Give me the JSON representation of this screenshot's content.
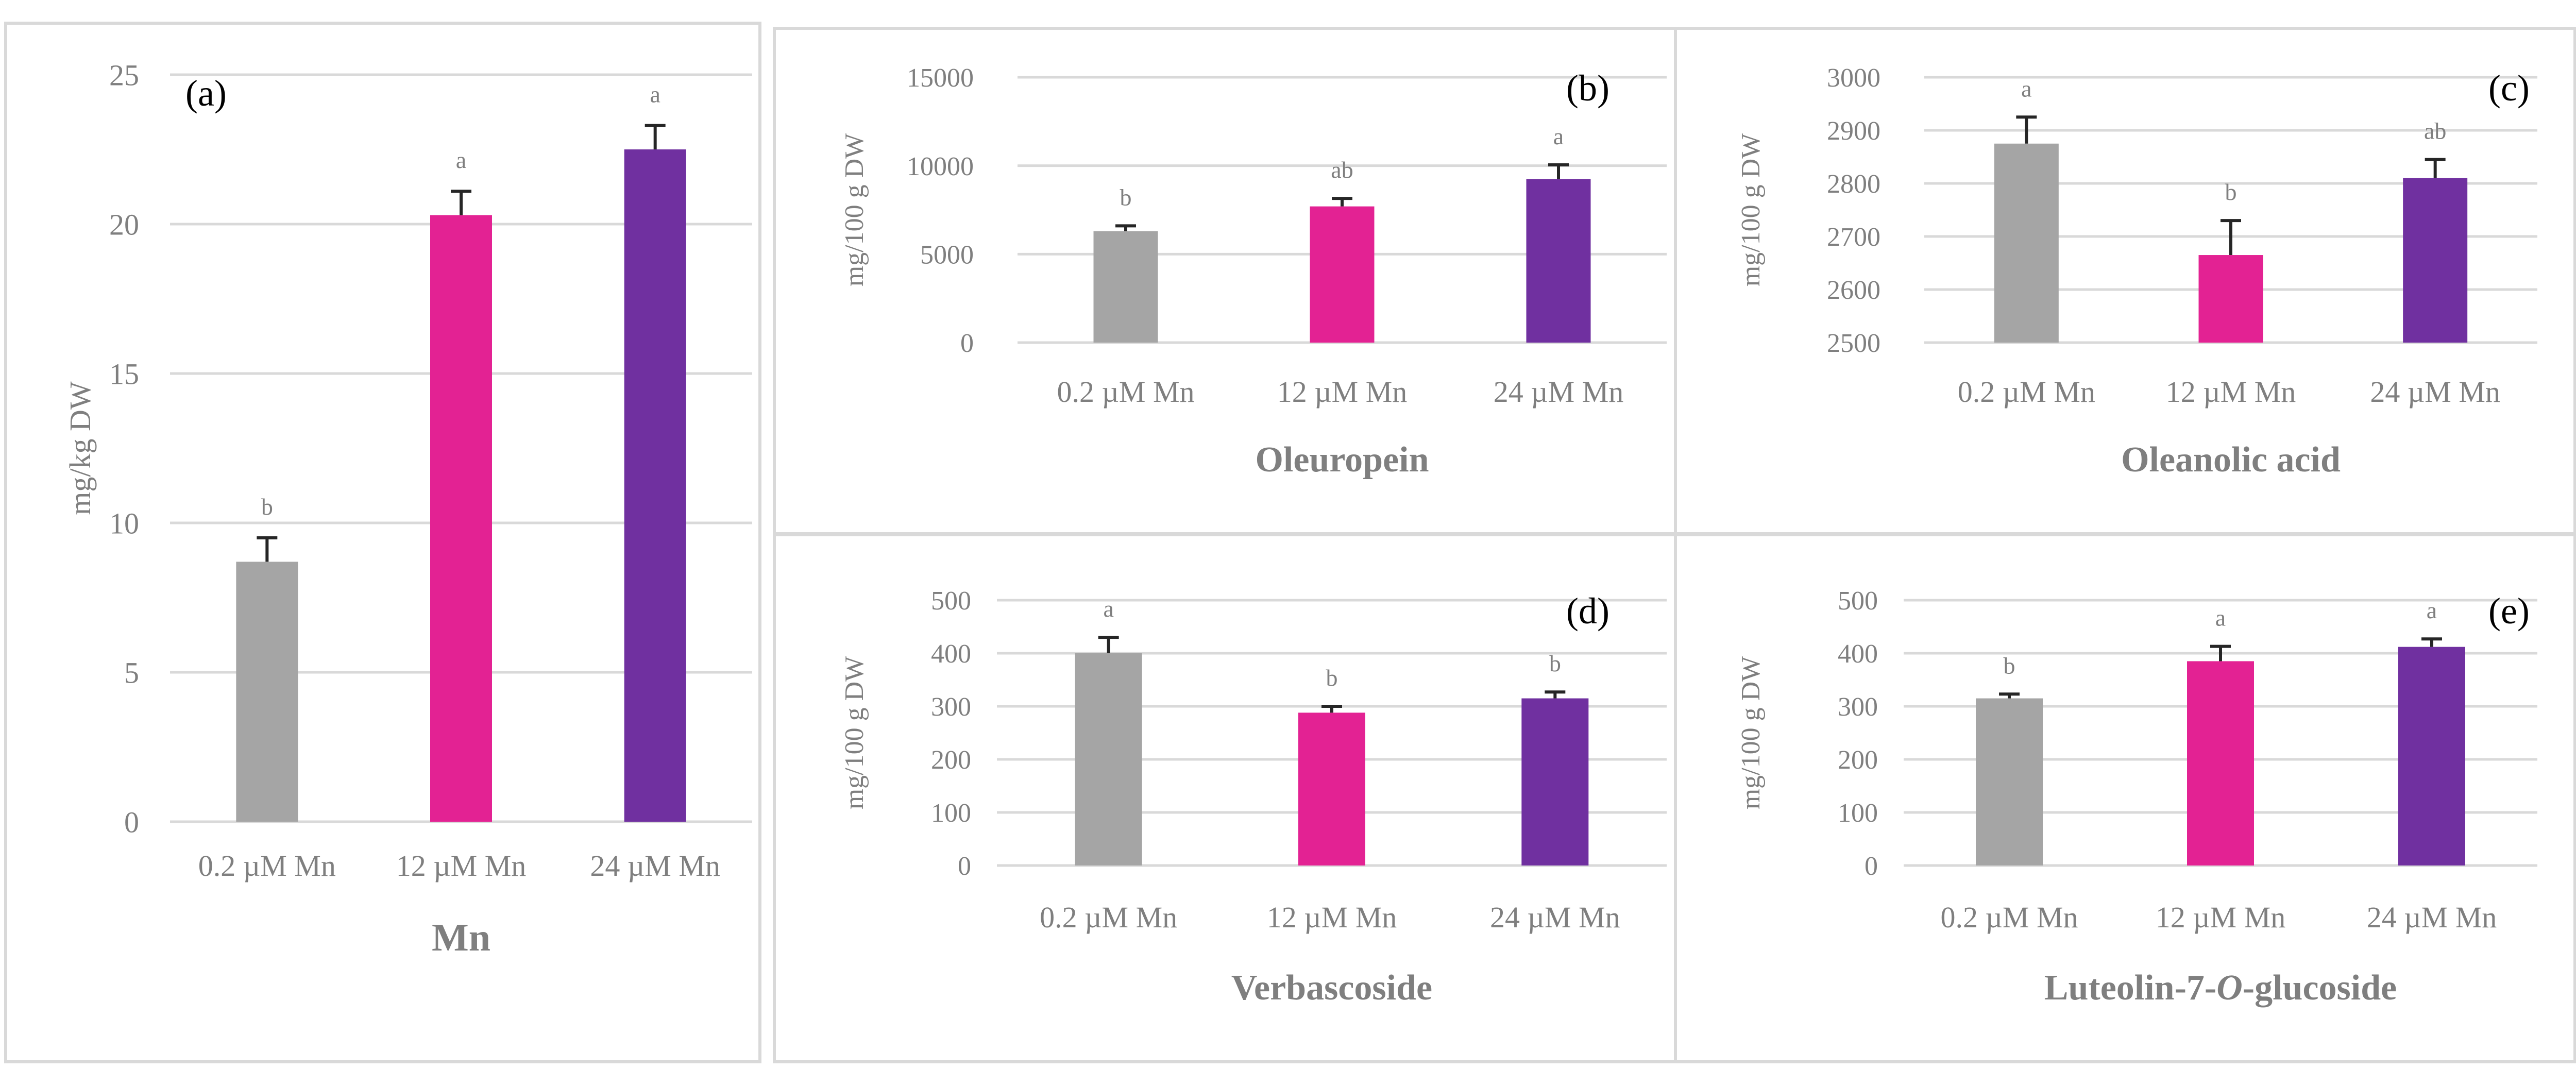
{
  "colors": {
    "gray": "#a5a5a5",
    "pink": "#e32293",
    "purple": "#7030a0",
    "grid": "#d9d9d9",
    "text": "#7f7f7f",
    "errorbar": "#262626"
  },
  "chart_data": [
    {
      "id": "a",
      "type": "bar",
      "panel_label": "(a)",
      "title": "",
      "xlabel": "Mn",
      "ylabel": "mg/kg DW",
      "categories": [
        "0.2 µM Mn",
        "12 µM Mn",
        "24 µM Mn"
      ],
      "values": [
        8.7,
        20.3,
        22.5
      ],
      "errors": [
        0.8,
        0.8,
        0.8
      ],
      "significance": [
        "b",
        "a",
        "a"
      ],
      "ylim": [
        0,
        25
      ],
      "yticks": [
        0,
        5,
        10,
        15,
        20,
        25
      ],
      "ytick_labels": [
        "0",
        "5",
        "10",
        "15",
        "20",
        "25"
      ]
    },
    {
      "id": "b",
      "type": "bar",
      "panel_label": "(b)",
      "title": "",
      "xlabel": "Oleuropein",
      "ylabel": "mg/100 g DW",
      "categories": [
        "0.2 µM Mn",
        "12 µM Mn",
        "24 µM Mn"
      ],
      "values": [
        6300,
        7700,
        9250
      ],
      "errors": [
        300,
        450,
        800
      ],
      "significance": [
        "b",
        "ab",
        "a"
      ],
      "ylim": [
        0,
        15000
      ],
      "yticks": [
        0,
        5000,
        10000,
        15000
      ],
      "ytick_labels": [
        "0",
        "5000",
        "10000",
        "15000"
      ]
    },
    {
      "id": "c",
      "type": "bar",
      "panel_label": "(c)",
      "title": "",
      "xlabel": "Oleanolic acid",
      "ylabel": "mg/100 g DW",
      "categories": [
        "0.2 µM Mn",
        "12 µM Mn",
        "24 µM Mn"
      ],
      "values": [
        2875,
        2665,
        2810
      ],
      "errors": [
        50,
        65,
        35
      ],
      "significance": [
        "a",
        "b",
        "ab"
      ],
      "ylim": [
        2500,
        3000
      ],
      "yticks": [
        2500,
        2600,
        2700,
        2800,
        2900,
        3000
      ],
      "ytick_labels": [
        "2500",
        "2600",
        "2700",
        "2800",
        "2900",
        "3000"
      ]
    },
    {
      "id": "d",
      "type": "bar",
      "panel_label": "(d)",
      "title": "",
      "xlabel": "Verbascoside",
      "ylabel": "mg/100 g DW",
      "categories": [
        "0.2 µM Mn",
        "12 µM Mn",
        "24 µM Mn"
      ],
      "values": [
        400,
        288,
        315
      ],
      "errors": [
        30,
        12,
        12
      ],
      "significance": [
        "a",
        "b",
        "b"
      ],
      "ylim": [
        0,
        500
      ],
      "yticks": [
        0,
        100,
        200,
        300,
        400,
        500
      ],
      "ytick_labels": [
        "0",
        "100",
        "200",
        "300",
        "400",
        "500"
      ]
    },
    {
      "id": "e",
      "type": "bar",
      "panel_label": "(e)",
      "title": "",
      "xlabel": "Luteolin-7-O-glucoside",
      "ylabel": "mg/100 g DW",
      "categories": [
        "0.2 µM Mn",
        "12 µM Mn",
        "24 µM Mn"
      ],
      "values": [
        315,
        385,
        412
      ],
      "errors": [
        8,
        28,
        15
      ],
      "significance": [
        "b",
        "a",
        "a"
      ],
      "ylim": [
        0,
        500
      ],
      "yticks": [
        0,
        100,
        200,
        300,
        400,
        500
      ],
      "ytick_labels": [
        "0",
        "100",
        "200",
        "300",
        "400",
        "500"
      ]
    }
  ]
}
